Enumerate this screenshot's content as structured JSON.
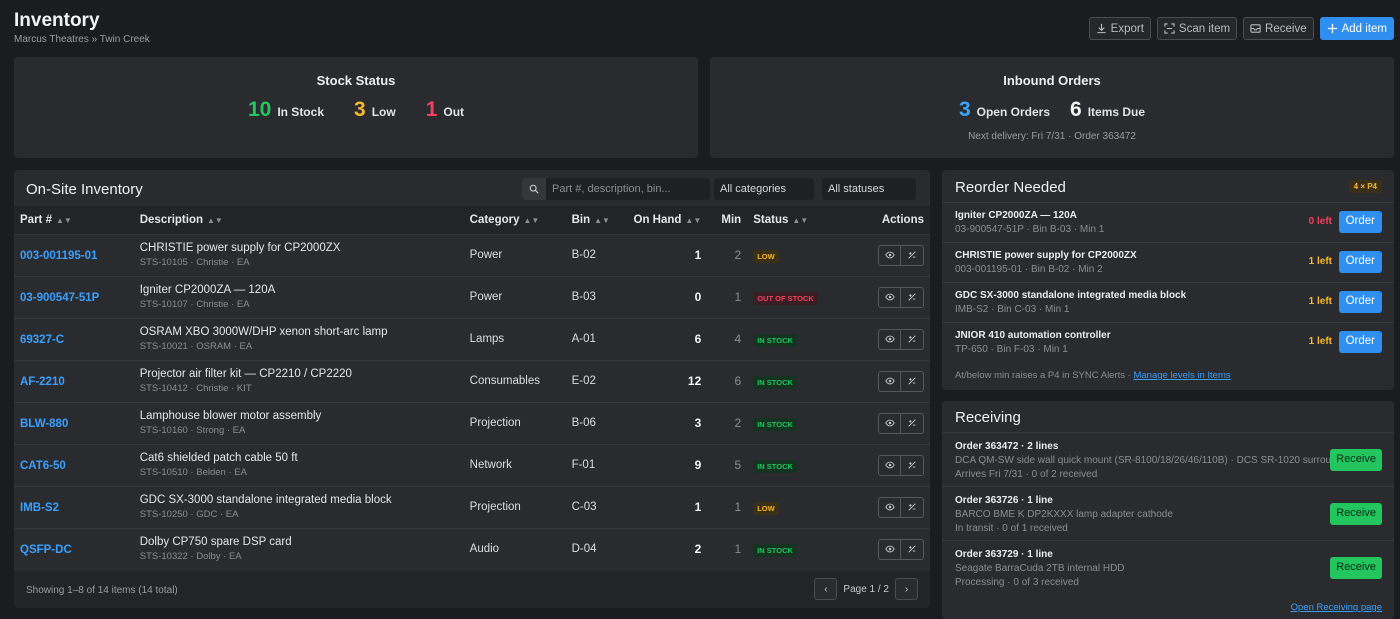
{
  "header": {
    "title": "Inventory",
    "breadcrumb": "Marcus Theatres » Twin Creek"
  },
  "toolbar": {
    "export": "Export",
    "scan": "Scan item",
    "receive": "Receive",
    "add": "Add item"
  },
  "stock_status": {
    "title": "Stock Status",
    "in_stock_count": "10",
    "in_stock_label": "In Stock",
    "low_count": "3",
    "low_label": "Low",
    "out_count": "1",
    "out_label": "Out"
  },
  "inbound": {
    "title": "Inbound Orders",
    "open_count": "3",
    "open_label": "Open Orders",
    "due_count": "6",
    "due_label": "Items Due",
    "next_delivery": "Next delivery: Fri 7/31 · Order 363472"
  },
  "inventory": {
    "title": "On-Site Inventory",
    "search_placeholder": "Part #, description, bin...",
    "category_filter": "All categories",
    "status_filter": "All statuses",
    "columns": {
      "part": "Part #",
      "description": "Description",
      "category": "Category",
      "bin": "Bin",
      "on_hand": "On Hand",
      "min": "Min",
      "status": "Status",
      "actions": "Actions"
    },
    "rows": [
      {
        "part": "003-001195-01",
        "desc": "CHRISTIE power supply for CP2000ZX",
        "sub": "STS-10105 · Christie · EA",
        "category": "Power",
        "bin": "B-02",
        "on_hand": "1",
        "min": "2",
        "status": "LOW",
        "status_type": "low"
      },
      {
        "part": "03-900547-51P",
        "desc": "Igniter CP2000ZA — 120A",
        "sub": "STS-10107 · Christie · EA",
        "category": "Power",
        "bin": "B-03",
        "on_hand": "0",
        "min": "1",
        "status": "OUT OF STOCK",
        "status_type": "out"
      },
      {
        "part": "69327-C",
        "desc": "OSRAM XBO 3000W/DHP xenon short-arc lamp",
        "sub": "STS-10021 · OSRAM · EA",
        "category": "Lamps",
        "bin": "A-01",
        "on_hand": "6",
        "min": "4",
        "status": "IN STOCK",
        "status_type": "in"
      },
      {
        "part": "AF-2210",
        "desc": "Projector air filter kit — CP2210 / CP2220",
        "sub": "STS-10412 · Christie · KIT",
        "category": "Consumables",
        "bin": "E-02",
        "on_hand": "12",
        "min": "6",
        "status": "IN STOCK",
        "status_type": "in"
      },
      {
        "part": "BLW-880",
        "desc": "Lamphouse blower motor assembly",
        "sub": "STS-10160 · Strong · EA",
        "category": "Projection",
        "bin": "B-06",
        "on_hand": "3",
        "min": "2",
        "status": "IN STOCK",
        "status_type": "in"
      },
      {
        "part": "CAT6-50",
        "desc": "Cat6 shielded patch cable 50 ft",
        "sub": "STS-10510 · Belden · EA",
        "category": "Network",
        "bin": "F-01",
        "on_hand": "9",
        "min": "5",
        "status": "IN STOCK",
        "status_type": "in"
      },
      {
        "part": "IMB-S2",
        "desc": "GDC SX-3000 standalone integrated media block",
        "sub": "STS-10250 · GDC · EA",
        "category": "Projection",
        "bin": "C-03",
        "on_hand": "1",
        "min": "1",
        "status": "LOW",
        "status_type": "low"
      },
      {
        "part": "QSFP-DC",
        "desc": "Dolby CP750 spare DSP card",
        "sub": "STS-10322 · Dolby · EA",
        "category": "Audio",
        "bin": "D-04",
        "on_hand": "2",
        "min": "1",
        "status": "IN STOCK",
        "status_type": "in"
      }
    ],
    "showing": "Showing 1–8 of 14 items (14 total)",
    "page_label": "Page 1 / 2"
  },
  "reorder": {
    "title": "Reorder Needed",
    "badge": "4 × P4",
    "items": [
      {
        "name": "Igniter CP2000ZA — 120A",
        "sub": "03-900547-51P · Bin B-03 · Min 1",
        "left": "0 left",
        "left_type": "out",
        "btn": "Order"
      },
      {
        "name": "CHRISTIE power supply for CP2000ZX",
        "sub": "003-001195-01 · Bin B-02 · Min 2",
        "left": "1 left",
        "left_type": "low",
        "btn": "Order"
      },
      {
        "name": "GDC SX-3000 standalone integrated media block",
        "sub": "IMB-S2 · Bin C-03 · Min 1",
        "left": "1 left",
        "left_type": "low",
        "btn": "Order"
      },
      {
        "name": "JNIOR 410 automation controller",
        "sub": "TP-650 · Bin F-03 · Min 1",
        "left": "1 left",
        "left_type": "low",
        "btn": "Order"
      }
    ],
    "footer_text": "At/below min raises a P4 in SYNC Alerts · ",
    "footer_link": "Manage levels in Items"
  },
  "receiving": {
    "title": "Receiving",
    "orders": [
      {
        "name": "Order 363472 · 2 lines",
        "desc": "DCA QM-SW side wall quick mount (SR-8100/18/26/46/110B) · DCS SR-1020 surrou…",
        "meta": "Arrives Fri 7/31 · 0 of 2 received",
        "btn": "Receive"
      },
      {
        "name": "Order 363726 · 1 line",
        "desc": "BARCO BME K DP2KXXX lamp adapter cathode",
        "meta": "In transit · 0 of 1 received",
        "btn": "Receive"
      },
      {
        "name": "Order 363729 · 1 line",
        "desc": "Seagate BarraCuda 2TB internal HDD",
        "meta": "Processing · 0 of 3 received",
        "btn": "Receive"
      }
    ],
    "link": "Open Receiving page"
  }
}
